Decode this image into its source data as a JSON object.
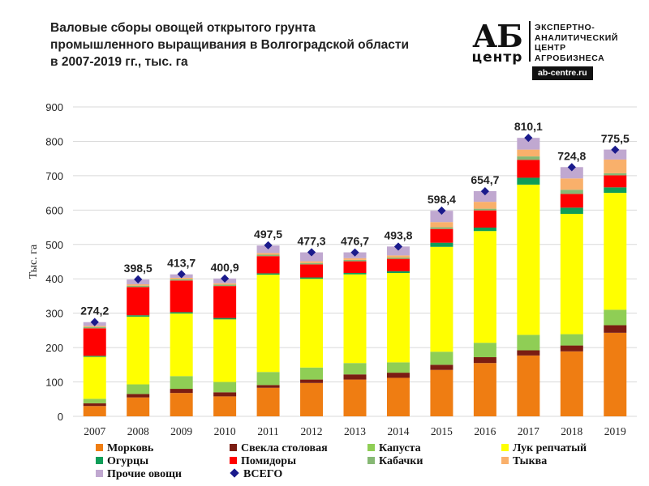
{
  "header": {
    "title_lines": [
      "Валовые сборы овощей открытого грунта",
      "промышленного  выращивания  в Волгоградской области",
      "в 2007-2019 гг., тыс. га"
    ]
  },
  "logo": {
    "mark_top": "АБ",
    "mark_bottom": "центр",
    "text_lines": [
      "ЭКСПЕРТНО-",
      "АНАЛИТИЧЕСКИЙ",
      "ЦЕНТР",
      "АГРОБИЗНЕСА"
    ],
    "url": "ab-centre.ru"
  },
  "chart_data": {
    "type": "bar",
    "stacked": true,
    "title": "Валовые сборы овощей открытого грунта промышленного выращивания в Волгоградской области в 2007-2019 гг., тыс. га",
    "xlabel": "",
    "ylabel": "Тыс. га",
    "ylim": [
      0,
      900
    ],
    "yticks": [
      0,
      100,
      200,
      300,
      400,
      500,
      600,
      700,
      800,
      900
    ],
    "grid": true,
    "categories": [
      "2007",
      "2008",
      "2009",
      "2010",
      "2011",
      "2012",
      "2013",
      "2014",
      "2015",
      "2016",
      "2017",
      "2018",
      "2019"
    ],
    "series": [
      {
        "name": "Морковь",
        "color": "#ef7d12",
        "values": [
          30,
          55,
          68,
          58,
          83,
          97,
          107,
          112,
          135,
          155,
          177,
          189,
          243
        ]
      },
      {
        "name": "Свекла столовая",
        "color": "#7b1d12",
        "values": [
          8,
          10,
          12,
          12,
          8,
          10,
          15,
          15,
          15,
          17,
          15,
          17,
          22
        ]
      },
      {
        "name": "Капуста",
        "color": "#8fce55",
        "values": [
          13,
          28,
          37,
          30,
          38,
          35,
          33,
          30,
          38,
          42,
          45,
          33,
          45
        ]
      },
      {
        "name": "Лук репчатый",
        "color": "#ffff00",
        "values": [
          122,
          197,
          182,
          182,
          283,
          258,
          258,
          260,
          305,
          325,
          437,
          350,
          340
        ]
      },
      {
        "name": "Огурцы",
        "color": "#0f9d58",
        "values": [
          3,
          4,
          4,
          4,
          4,
          4,
          4,
          5,
          12,
          10,
          20,
          18,
          16
        ]
      },
      {
        "name": "Помидоры",
        "color": "#ff0000",
        "values": [
          80,
          82,
          92,
          93,
          50,
          38,
          34,
          36,
          40,
          50,
          52,
          40,
          35
        ]
      },
      {
        "name": "Кабачки",
        "color": "#86b874",
        "values": [
          4,
          4,
          4,
          4,
          4,
          4,
          4,
          4,
          5,
          5,
          10,
          12,
          6
        ]
      },
      {
        "name": "Тыква",
        "color": "#f9b06b",
        "values": [
          3,
          4,
          4,
          4,
          5,
          5,
          5,
          6,
          15,
          20,
          20,
          33,
          40
        ]
      },
      {
        "name": "Прочие овощи",
        "color": "#c0a8d0",
        "values": [
          11,
          14,
          10,
          14,
          22,
          26,
          17,
          26,
          33,
          31,
          34,
          33,
          29
        ]
      }
    ],
    "total": {
      "name": "ВСЕГО",
      "color": "#1a1a8c",
      "values": [
        274.2,
        398.5,
        413.7,
        400.9,
        497.5,
        477.3,
        476.7,
        493.8,
        598.4,
        654.7,
        810.1,
        724.8,
        775.5
      ],
      "labels": [
        "274,2",
        "398,5",
        "413,7",
        "400,9",
        "497,5",
        "477,3",
        "476,7",
        "493,8",
        "598,4",
        "654,7",
        "810,1",
        "724,8",
        "775,5"
      ]
    },
    "legend_position": "bottom"
  }
}
